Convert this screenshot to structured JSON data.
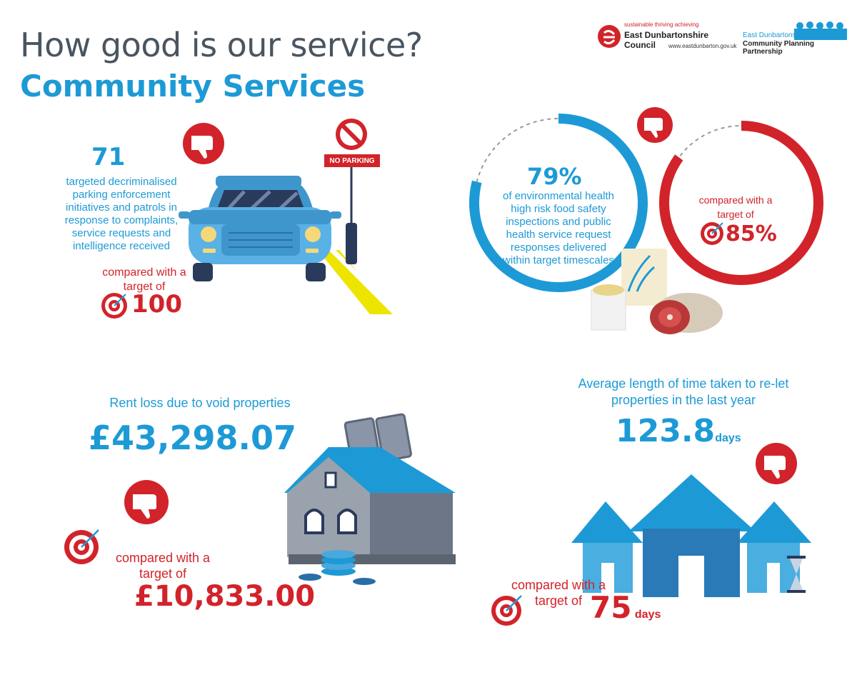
{
  "header": {
    "title": "How good is our service?",
    "subtitle": "Community Services"
  },
  "logos": {
    "council": {
      "tagline": "sustainable thriving achieving",
      "name": "East Dunbartonshire Council",
      "url": "www.eastdunbarton.gov.uk"
    },
    "partnership": {
      "line1": "East Dunbartonshire",
      "line2": "Community Planning Partnership"
    }
  },
  "parking": {
    "value": "71",
    "description": "targeted decriminalised parking enforcement initiatives and patrols in response to complaints, service requests and intelligence received",
    "compare_label": "compared with a target of",
    "target": "100",
    "sign_text": "NO PARKING"
  },
  "environmental": {
    "value": "79%",
    "description": "of environmental health high risk food safety inspections and public health service request responses delivered within target timescales",
    "compare_label": "compared with a target of",
    "target": "85%",
    "fraction": 0.79,
    "target_fraction": 0.85
  },
  "rent_loss": {
    "label": "Rent loss due to void properties",
    "value": "£43,298.07",
    "compare_label": "compared with a target of",
    "target": "£10,833.00"
  },
  "relet": {
    "label": "Average length of time taken to re-let properties in the last year",
    "value": "123.8",
    "unit": "days",
    "compare_label": "compared with a target of",
    "target": "75",
    "target_unit": "days"
  },
  "colors": {
    "blue": "#1d9ad6",
    "red": "#d2232a",
    "title_grey": "#4a5560"
  }
}
